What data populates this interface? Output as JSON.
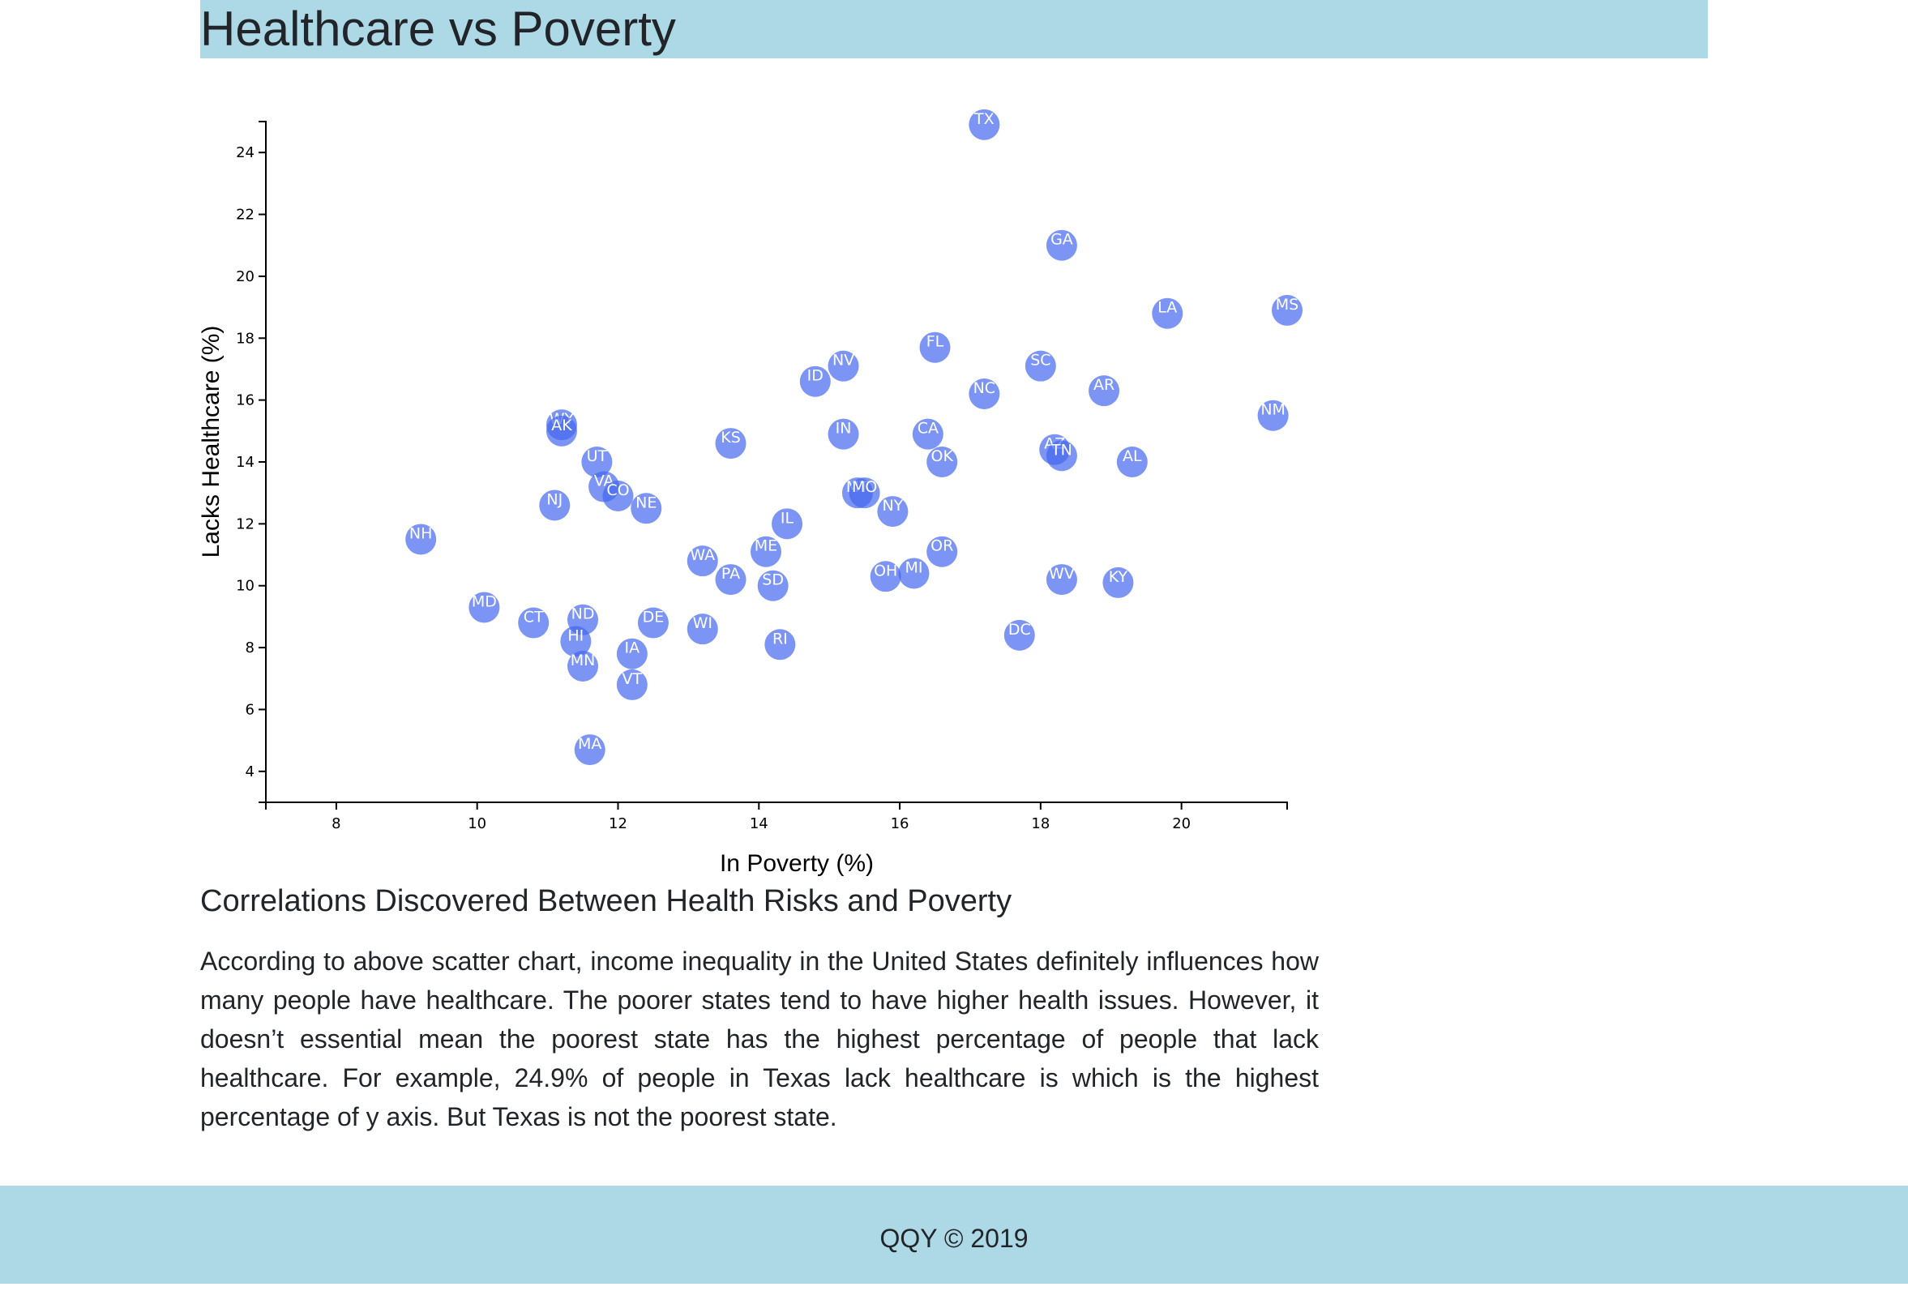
{
  "header": {
    "title": "Healthcare vs Poverty"
  },
  "chart_data": {
    "type": "scatter",
    "xlabel": "In Poverty (%)",
    "ylabel": "Lacks Healthcare (%)",
    "xlim": [
      7,
      21.5
    ],
    "ylim": [
      3,
      25
    ],
    "xticks": [
      8,
      10,
      12,
      14,
      16,
      18,
      20
    ],
    "yticks": [
      4,
      6,
      8,
      10,
      12,
      14,
      16,
      18,
      20,
      22,
      24
    ],
    "point_color": "#4466ee",
    "label_color": "#ffffff",
    "points": [
      {
        "label": "TX",
        "x": 17.2,
        "y": 24.9
      },
      {
        "label": "GA",
        "x": 18.3,
        "y": 21.0
      },
      {
        "label": "LA",
        "x": 19.8,
        "y": 18.8
      },
      {
        "label": "MS",
        "x": 21.5,
        "y": 18.9
      },
      {
        "label": "FL",
        "x": 16.5,
        "y": 17.7
      },
      {
        "label": "SC",
        "x": 18.0,
        "y": 17.1
      },
      {
        "label": "NV",
        "x": 15.2,
        "y": 17.1
      },
      {
        "label": "ID",
        "x": 14.8,
        "y": 16.6
      },
      {
        "label": "AR",
        "x": 18.9,
        "y": 16.3
      },
      {
        "label": "NC",
        "x": 17.2,
        "y": 16.2
      },
      {
        "label": "NM",
        "x": 21.3,
        "y": 15.5
      },
      {
        "label": "WY",
        "x": 11.2,
        "y": 15.2
      },
      {
        "label": "AK",
        "x": 11.2,
        "y": 15.0
      },
      {
        "label": "IN",
        "x": 15.2,
        "y": 14.9
      },
      {
        "label": "CA",
        "x": 16.4,
        "y": 14.9
      },
      {
        "label": "KS",
        "x": 13.6,
        "y": 14.6
      },
      {
        "label": "AZ",
        "x": 18.2,
        "y": 14.4
      },
      {
        "label": "TN",
        "x": 18.3,
        "y": 14.2
      },
      {
        "label": "AL",
        "x": 19.3,
        "y": 14.0
      },
      {
        "label": "UT",
        "x": 11.7,
        "y": 14.0
      },
      {
        "label": "OK",
        "x": 16.6,
        "y": 14.0
      },
      {
        "label": "VA",
        "x": 11.8,
        "y": 13.2
      },
      {
        "label": "CO",
        "x": 12.0,
        "y": 12.9
      },
      {
        "label": "MT",
        "x": 15.4,
        "y": 13.0
      },
      {
        "label": "MO",
        "x": 15.5,
        "y": 13.0
      },
      {
        "label": "NJ",
        "x": 11.1,
        "y": 12.6
      },
      {
        "label": "NE",
        "x": 12.4,
        "y": 12.5
      },
      {
        "label": "NY",
        "x": 15.9,
        "y": 12.4
      },
      {
        "label": "IL",
        "x": 14.4,
        "y": 12.0
      },
      {
        "label": "NH",
        "x": 9.2,
        "y": 11.5
      },
      {
        "label": "ME",
        "x": 14.1,
        "y": 11.1
      },
      {
        "label": "OR",
        "x": 16.6,
        "y": 11.1
      },
      {
        "label": "WA",
        "x": 13.2,
        "y": 10.8
      },
      {
        "label": "PA",
        "x": 13.6,
        "y": 10.2
      },
      {
        "label": "MI",
        "x": 16.2,
        "y": 10.4
      },
      {
        "label": "OH",
        "x": 15.8,
        "y": 10.3
      },
      {
        "label": "SD",
        "x": 14.2,
        "y": 10.0
      },
      {
        "label": "WV",
        "x": 18.3,
        "y": 10.2
      },
      {
        "label": "KY",
        "x": 19.1,
        "y": 10.1
      },
      {
        "label": "MD",
        "x": 10.1,
        "y": 9.3
      },
      {
        "label": "CT",
        "x": 10.8,
        "y": 8.8
      },
      {
        "label": "ND",
        "x": 11.5,
        "y": 8.9
      },
      {
        "label": "DE",
        "x": 12.5,
        "y": 8.8
      },
      {
        "label": "WI",
        "x": 13.2,
        "y": 8.6
      },
      {
        "label": "HI",
        "x": 11.4,
        "y": 8.2
      },
      {
        "label": "RI",
        "x": 14.3,
        "y": 8.1
      },
      {
        "label": "DC",
        "x": 17.7,
        "y": 8.4
      },
      {
        "label": "IA",
        "x": 12.2,
        "y": 7.8
      },
      {
        "label": "MN",
        "x": 11.5,
        "y": 7.4
      },
      {
        "label": "VT",
        "x": 12.2,
        "y": 6.8
      },
      {
        "label": "MA",
        "x": 11.6,
        "y": 4.7
      }
    ]
  },
  "analysis": {
    "heading": "Correlations Discovered Between Health Risks and Poverty",
    "body": "According to above scatter chart, income inequality in the United States definitely influences how many people have healthcare. The poorer states tend to have higher health issues. However, it doesn’t essential mean the poorest state has the highest percentage of people that lack healthcare. For example, 24.9% of people in Texas lack healthcare is which is the highest percentage of y axis. But Texas is not the poorest state."
  },
  "footer": {
    "text": "QQY © 2019"
  }
}
